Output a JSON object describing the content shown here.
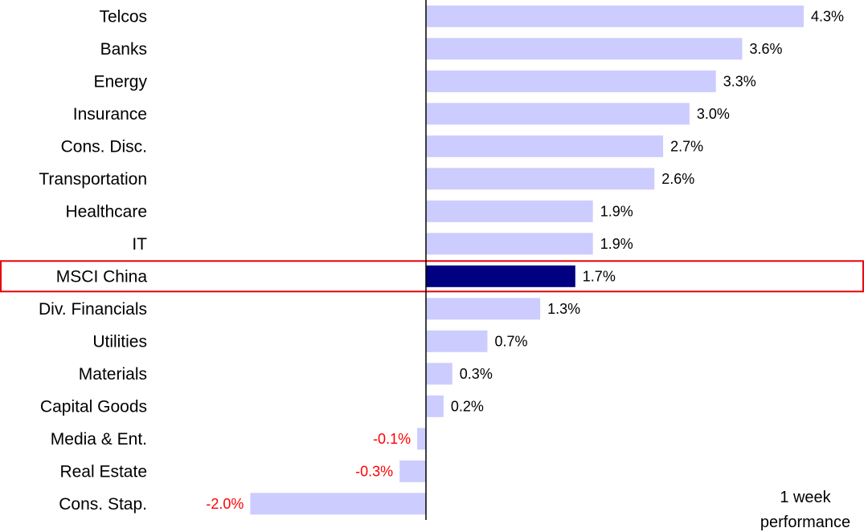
{
  "chart_data": {
    "type": "bar",
    "orientation": "horizontal",
    "categories": [
      "Telcos",
      "Banks",
      "Energy",
      "Insurance",
      "Cons. Disc.",
      "Transportation",
      "Healthcare",
      "IT",
      "MSCI China",
      "Div. Financials",
      "Utilities",
      "Materials",
      "Capital Goods",
      "Media & Ent.",
      "Real Estate",
      "Cons. Stap."
    ],
    "values": [
      4.3,
      3.6,
      3.3,
      3.0,
      2.7,
      2.6,
      1.9,
      1.9,
      1.7,
      1.3,
      0.7,
      0.3,
      0.2,
      -0.1,
      -0.3,
      -2.0
    ],
    "value_labels": [
      "4.3%",
      "3.6%",
      "3.3%",
      "3.0%",
      "2.7%",
      "2.6%",
      "1.9%",
      "1.9%",
      "1.7%",
      "1.3%",
      "0.7%",
      "0.3%",
      "0.2%",
      "-0.1%",
      "-0.3%",
      "-2.0%"
    ],
    "highlight_category": "MSCI China",
    "annotation_lines": [
      "1 week",
      "performance"
    ],
    "xlim": [
      -2.0,
      4.3
    ],
    "grid": false,
    "legend": "none",
    "colors": {
      "bar": "#ccccff",
      "highlight_bar": "#000080",
      "highlight_box": "#e8000b",
      "negative_label": "#ff0000",
      "positive_label": "#000000",
      "axis": "#000000"
    }
  }
}
